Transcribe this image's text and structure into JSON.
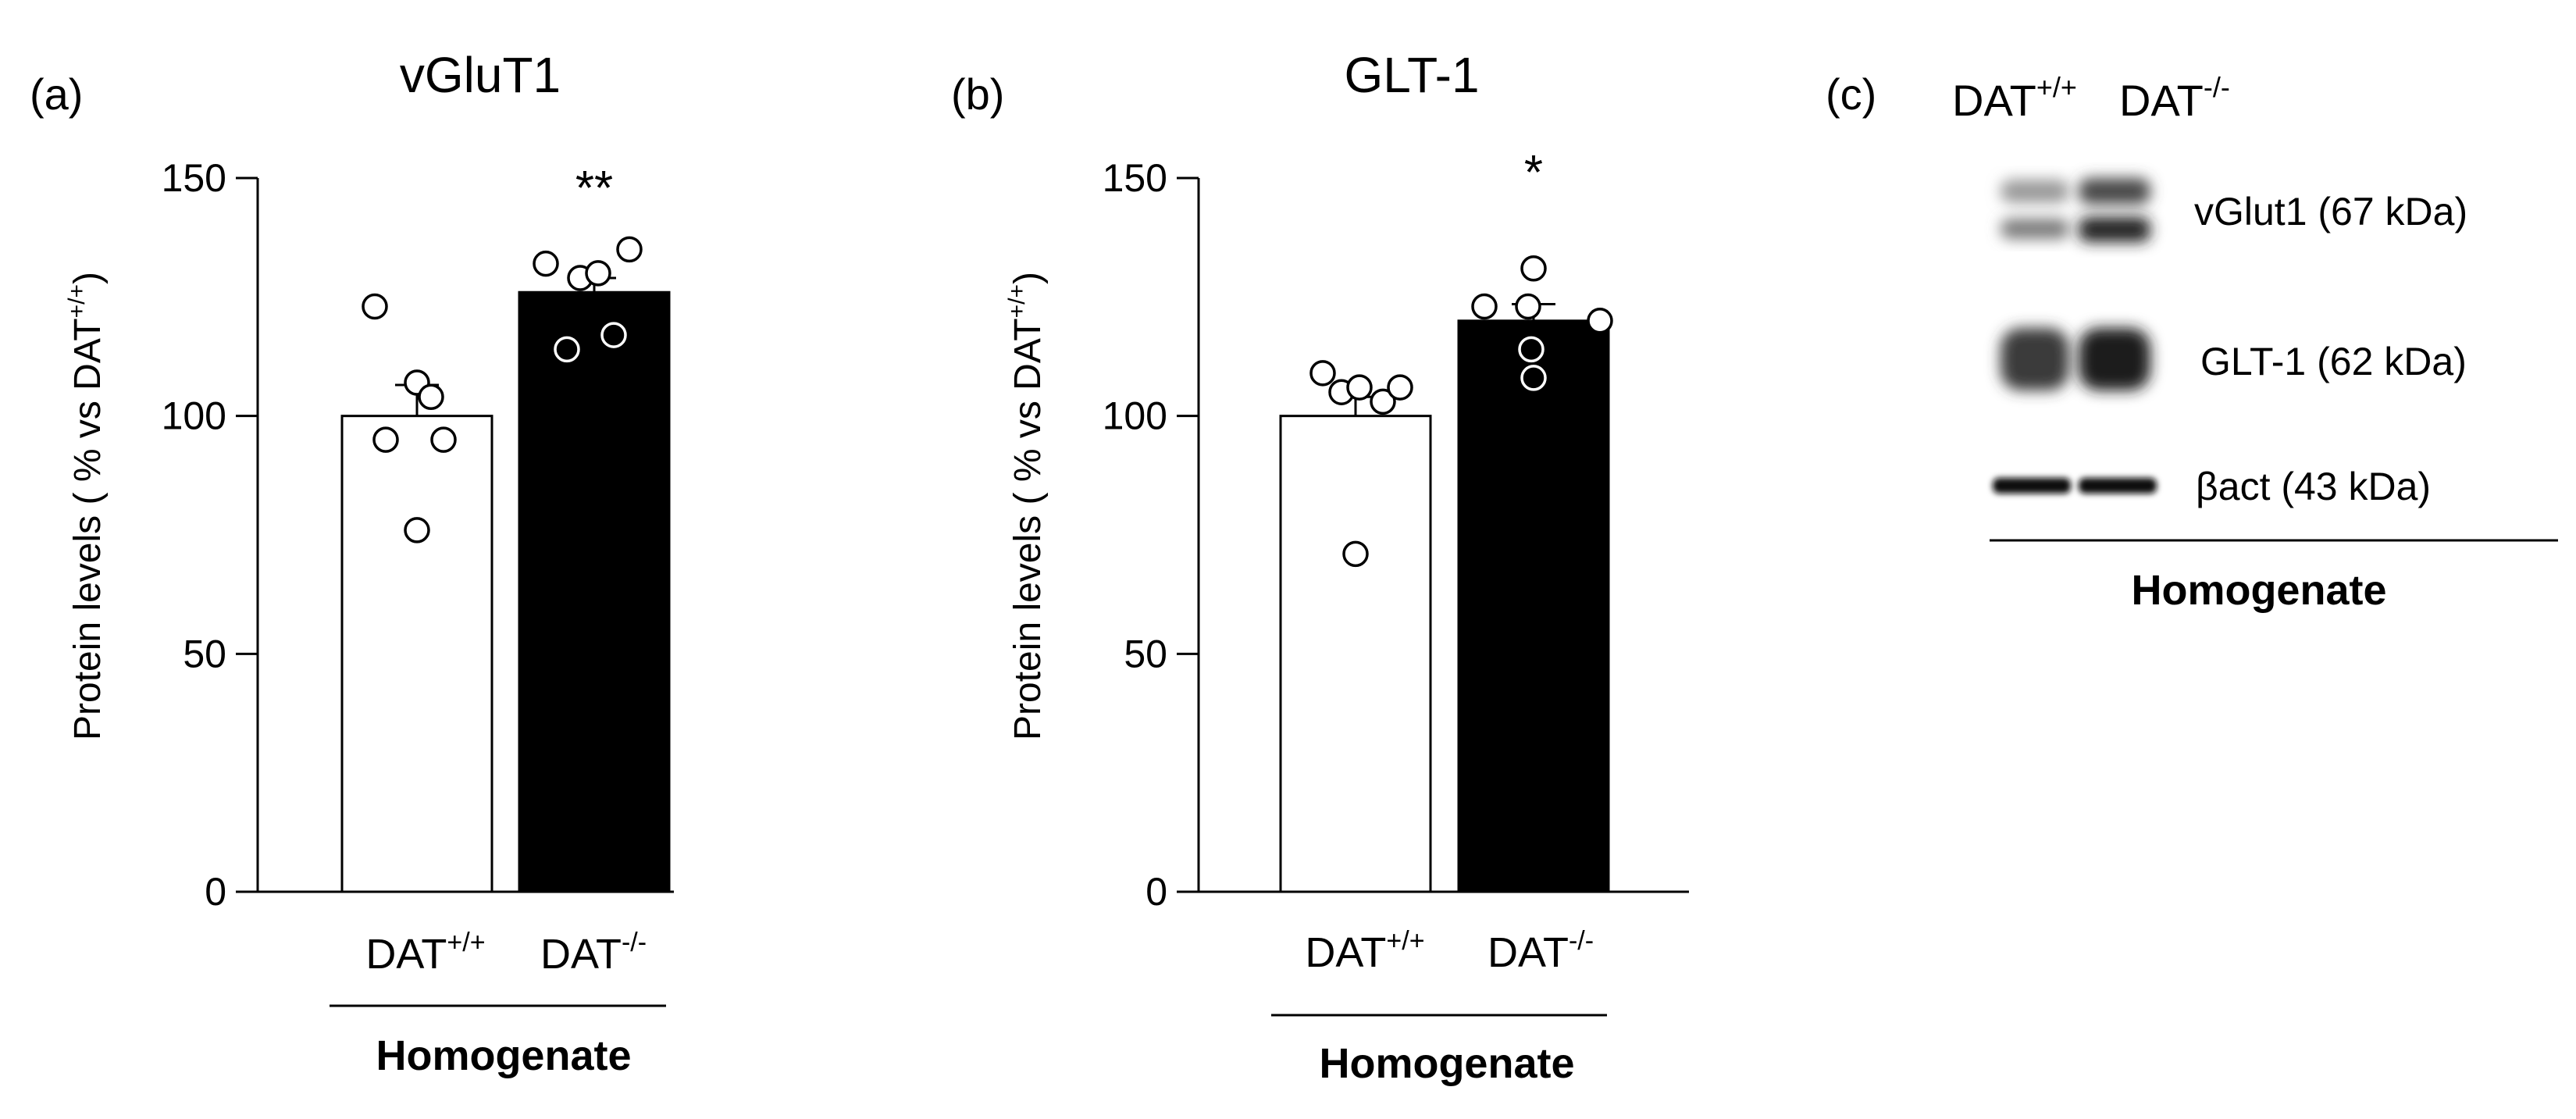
{
  "chart_data": [
    {
      "type": "bar",
      "panel_label": "(a)",
      "title": "vGluT1",
      "ylabel": {
        "main": "Protein levels ( % vs DAT",
        "sup": "+/+",
        "close": ")"
      },
      "ylim": [
        0,
        150
      ],
      "yticks": [
        0,
        50,
        100,
        150
      ],
      "group_label": "Homogenate",
      "categories": [
        {
          "name": "DAT",
          "sup": "+/+"
        },
        {
          "name": "DAT",
          "sup": "-/-"
        }
      ],
      "series": [
        {
          "name": "DAT+/+",
          "color": "#ffffff",
          "mean": 100,
          "sem": 6.5,
          "points": [
            123,
            107,
            104,
            95,
            95,
            76
          ]
        },
        {
          "name": "DAT-/-",
          "color": "#000000",
          "mean": 126,
          "sem": 3,
          "points": [
            132,
            129,
            130,
            135,
            114,
            117
          ]
        }
      ],
      "significance": [
        "",
        "**"
      ]
    },
    {
      "type": "bar",
      "panel_label": "(b)",
      "title": "GLT-1",
      "ylabel": {
        "main": "Protein levels ( % vs DAT",
        "sup": "+/+",
        "close": ")"
      },
      "ylim": [
        0,
        150
      ],
      "yticks": [
        0,
        50,
        100,
        150
      ],
      "group_label": "Homogenate",
      "categories": [
        {
          "name": "DAT",
          "sup": "+/+"
        },
        {
          "name": "DAT",
          "sup": "-/-"
        }
      ],
      "series": [
        {
          "name": "DAT+/+",
          "color": "#ffffff",
          "mean": 100,
          "sem": 4,
          "points": [
            109,
            105,
            106,
            103,
            106,
            71
          ]
        },
        {
          "name": "DAT-/-",
          "color": "#000000",
          "mean": 120,
          "sem": 3.5,
          "points": [
            123,
            123,
            131,
            108,
            114,
            120
          ]
        }
      ],
      "significance": [
        "",
        "*"
      ]
    }
  ],
  "western_blot": {
    "panel_label": "(c)",
    "lanes": [
      {
        "name": "DAT",
        "sup": "+/+"
      },
      {
        "name": "DAT",
        "sup": "-/-"
      }
    ],
    "bands": [
      {
        "label": "vGlut1 (67 kDa)"
      },
      {
        "label": "GLT-1 (62 kDa)"
      },
      {
        "label": "βact (43 kDa)"
      }
    ],
    "group_label": "Homogenate"
  }
}
